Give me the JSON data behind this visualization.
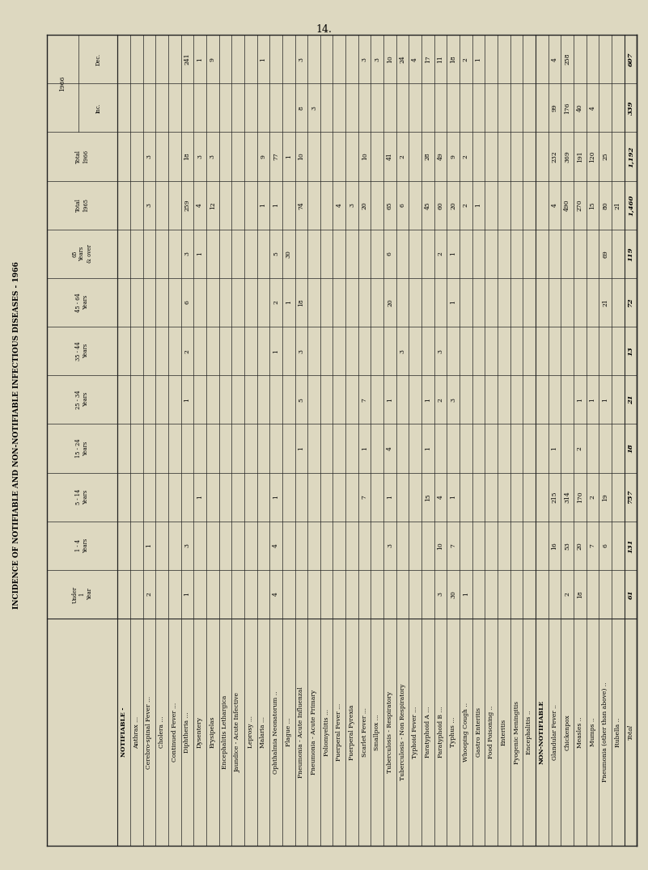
{
  "title": "INCIDENCE OF NOTIFIABLE AND NON-NOTIFIABLE INFECTIOUS DISEASES - 1966",
  "page_number": "14.",
  "col_headers": [
    "Under\n1\nYear",
    "1 - 4\nYears",
    "5 - 14\nYears",
    "15 - 24\nYears",
    "25 - 34\nYears",
    "35 - 44\nYears",
    "45 - 64\nYears",
    "65\nYears\n& over",
    "Total\n1965",
    "Total\n1966",
    "Inc.",
    "Dec."
  ],
  "rows": [
    {
      "label": "NOTIFIABLE -",
      "values": [
        "",
        "",
        "",
        "",
        "",
        "",
        "",
        "",
        "",
        "",
        "",
        ""
      ],
      "section": true
    },
    {
      "label": "Anthrax ...",
      "values": [
        " ",
        " ",
        " ",
        " ",
        " ",
        " ",
        " ",
        " ",
        " ",
        " ",
        " ",
        " "
      ],
      "section": false
    },
    {
      "label": "Cerebro-spinal Fever ...",
      "values": [
        "2",
        "1",
        " ",
        " ",
        " ",
        " ",
        " ",
        " ",
        "3",
        "3",
        " ",
        " "
      ],
      "section": false
    },
    {
      "label": "Cholera ...",
      "values": [
        " ",
        " ",
        " ",
        " ",
        " ",
        " ",
        " ",
        " ",
        " ",
        " ",
        " ",
        " "
      ],
      "section": false
    },
    {
      "label": "Continued Fever ...",
      "values": [
        " ",
        " ",
        " ",
        " ",
        " ",
        " ",
        " ",
        " ",
        " ",
        " ",
        " ",
        " "
      ],
      "section": false
    },
    {
      "label": "Diphtheria ...",
      "values": [
        "1",
        "3",
        " ",
        " ",
        "1",
        "2",
        "6",
        "3",
        "259",
        "18",
        " ",
        "241"
      ],
      "section": false
    },
    {
      "label": "Dysentery",
      "values": [
        " ",
        " ",
        "1",
        " ",
        " ",
        " ",
        " ",
        "1",
        "4",
        "3",
        " ",
        "1"
      ],
      "section": false
    },
    {
      "label": "Erysipelas",
      "values": [
        " ",
        " ",
        " ",
        " ",
        " ",
        " ",
        " ",
        " ",
        "12",
        "3",
        " ",
        "9"
      ],
      "section": false
    },
    {
      "label": "Encephalitis Lethargica",
      "values": [
        " ",
        " ",
        " ",
        " ",
        " ",
        " ",
        " ",
        " ",
        " ",
        " ",
        " ",
        " "
      ],
      "section": false
    },
    {
      "label": "Jaundice - Acute Infective",
      "values": [
        " ",
        " ",
        " ",
        " ",
        " ",
        " ",
        " ",
        " ",
        " ",
        " ",
        " ",
        " "
      ],
      "section": false
    },
    {
      "label": "Leprosy ...",
      "values": [
        " ",
        " ",
        " ",
        " ",
        " ",
        " ",
        " ",
        " ",
        " ",
        " ",
        " ",
        " "
      ],
      "section": false
    },
    {
      "label": "Malaria ...",
      "values": [
        " ",
        " ",
        " ",
        " ",
        " ",
        " ",
        " ",
        " ",
        "1",
        "9",
        " ",
        "1"
      ],
      "section": false
    },
    {
      "label": "Ophthalmia Neonatorum ..",
      "values": [
        "4",
        "4",
        "1",
        " ",
        " ",
        "1",
        "2",
        "5",
        "1",
        "77",
        " ",
        " "
      ],
      "section": false
    },
    {
      "label": "Plague ...",
      "values": [
        " ",
        " ",
        " ",
        " ",
        " ",
        " ",
        "1",
        "30",
        " ",
        "1",
        " ",
        " "
      ],
      "section": false
    },
    {
      "label": "Pneumonia - Acute Influenzal",
      "values": [
        " ",
        " ",
        " ",
        "1",
        "5",
        "3",
        "18",
        " ",
        "74",
        "10",
        "8",
        "3"
      ],
      "section": false
    },
    {
      "label": "Pneumonia - Acute Primary",
      "values": [
        " ",
        " ",
        " ",
        " ",
        " ",
        " ",
        " ",
        " ",
        " ",
        " ",
        "3",
        " "
      ],
      "section": false
    },
    {
      "label": "Poliomyelitis ...",
      "values": [
        " ",
        " ",
        " ",
        " ",
        " ",
        " ",
        " ",
        " ",
        " ",
        " ",
        " ",
        " "
      ],
      "section": false
    },
    {
      "label": "Puerperal Fever ...",
      "values": [
        " ",
        " ",
        " ",
        " ",
        " ",
        " ",
        " ",
        " ",
        "4",
        " ",
        " ",
        " "
      ],
      "section": false
    },
    {
      "label": "Puerperal Pyrexia",
      "values": [
        " ",
        " ",
        " ",
        " ",
        " ",
        " ",
        " ",
        " ",
        "3",
        " ",
        " ",
        " "
      ],
      "section": false
    },
    {
      "label": "Scarlet Fever ...",
      "values": [
        " ",
        " ",
        "7",
        "1",
        "7",
        " ",
        " ",
        " ",
        "20",
        "10",
        " ",
        "3"
      ],
      "section": false
    },
    {
      "label": "Smallpox ...",
      "values": [
        " ",
        " ",
        " ",
        " ",
        " ",
        " ",
        " ",
        " ",
        " ",
        " ",
        " ",
        "3"
      ],
      "section": false
    },
    {
      "label": "Tuberculosis - Respiratory",
      "values": [
        " ",
        "3",
        "1",
        "4",
        "1",
        " ",
        "20",
        "6",
        "65",
        "41",
        " ",
        "10"
      ],
      "section": false
    },
    {
      "label": "Tuberculosis - Non Respiratory",
      "values": [
        " ",
        " ",
        " ",
        " ",
        " ",
        "3",
        " ",
        " ",
        "6",
        "2",
        " ",
        "24"
      ],
      "section": false
    },
    {
      "label": "Typhoid Fever ...",
      "values": [
        " ",
        " ",
        " ",
        " ",
        " ",
        " ",
        " ",
        " ",
        " ",
        " ",
        " ",
        "4"
      ],
      "section": false
    },
    {
      "label": "Paratyphoid A ...",
      "values": [
        " ",
        " ",
        "15",
        "1",
        "1",
        " ",
        " ",
        " ",
        "45",
        "28",
        " ",
        "17"
      ],
      "section": false
    },
    {
      "label": "Paratyphoid B ...",
      "values": [
        "3",
        "10",
        "4",
        " ",
        "2",
        "3",
        " ",
        "2",
        "60",
        "49",
        " ",
        "11"
      ],
      "section": false
    },
    {
      "label": "Typhus ...",
      "values": [
        "30",
        "7",
        "1",
        " ",
        "3",
        " ",
        "1",
        "1",
        "20",
        "9",
        " ",
        "18"
      ],
      "section": false
    },
    {
      "label": "Whooping Cough ..",
      "values": [
        "1",
        " ",
        " ",
        " ",
        " ",
        " ",
        " ",
        " ",
        "2",
        "2",
        " ",
        "2"
      ],
      "section": false
    },
    {
      "label": "Gastro Enteritis",
      "values": [
        " ",
        " ",
        " ",
        " ",
        " ",
        " ",
        " ",
        " ",
        "1",
        " ",
        " ",
        "1"
      ],
      "section": false
    },
    {
      "label": "Food Poisoning ..",
      "values": [
        " ",
        " ",
        " ",
        " ",
        " ",
        " ",
        " ",
        " ",
        " ",
        " ",
        " ",
        " "
      ],
      "section": false
    },
    {
      "label": "Enteritis",
      "values": [
        " ",
        " ",
        " ",
        " ",
        " ",
        " ",
        " ",
        " ",
        " ",
        " ",
        " ",
        " "
      ],
      "section": false
    },
    {
      "label": "Pyogenic Meningitis",
      "values": [
        " ",
        " ",
        " ",
        " ",
        " ",
        " ",
        " ",
        " ",
        " ",
        " ",
        " ",
        " "
      ],
      "section": false
    },
    {
      "label": "Encephalitis ..",
      "values": [
        " ",
        " ",
        " ",
        " ",
        " ",
        " ",
        " ",
        " ",
        " ",
        " ",
        " ",
        " "
      ],
      "section": false
    },
    {
      "label": "NON-NOTIFIABLE",
      "values": [
        "",
        "",
        "",
        "",
        "",
        "",
        "",
        "",
        "",
        "",
        "",
        ""
      ],
      "section": true
    },
    {
      "label": "Glandular Fever ..",
      "values": [
        " ",
        "16",
        "215",
        "1",
        " ",
        " ",
        " ",
        " ",
        "4",
        "232",
        "99",
        "4"
      ],
      "section": false
    },
    {
      "label": "Chickenpox",
      "values": [
        "2",
        "53",
        "314",
        " ",
        " ",
        " ",
        " ",
        " ",
        "490",
        "369",
        "176",
        "258"
      ],
      "section": false
    },
    {
      "label": "Measles ..",
      "values": [
        "18",
        "20",
        "170",
        "2",
        "1",
        " ",
        " ",
        " ",
        "270",
        "191",
        "40",
        " "
      ],
      "section": false
    },
    {
      "label": "Mumps ..",
      "values": [
        " ",
        "7",
        "2",
        " ",
        "1",
        " ",
        " ",
        " ",
        "15",
        "120",
        "4",
        " "
      ],
      "section": false
    },
    {
      "label": "Pneumonia (other than above) ..",
      "values": [
        " ",
        "6",
        "19",
        " ",
        "1",
        " ",
        "21",
        "69",
        "80",
        "25",
        " ",
        " "
      ],
      "section": false
    },
    {
      "label": "Rubella ..",
      "values": [
        " ",
        " ",
        " ",
        " ",
        " ",
        " ",
        " ",
        " ",
        "21",
        " ",
        " ",
        " "
      ],
      "section": false
    },
    {
      "label": "Total",
      "values": [
        "61",
        "131",
        "757",
        "18",
        "21",
        "13",
        "72",
        "119",
        "1,460",
        "1,192",
        "339",
        "607"
      ],
      "section": false,
      "total": true
    }
  ],
  "bg_color": "#ddd8c0",
  "table_bg": "#f0ece0",
  "line_color": "#222222",
  "text_color": "#000000",
  "dot": "·"
}
